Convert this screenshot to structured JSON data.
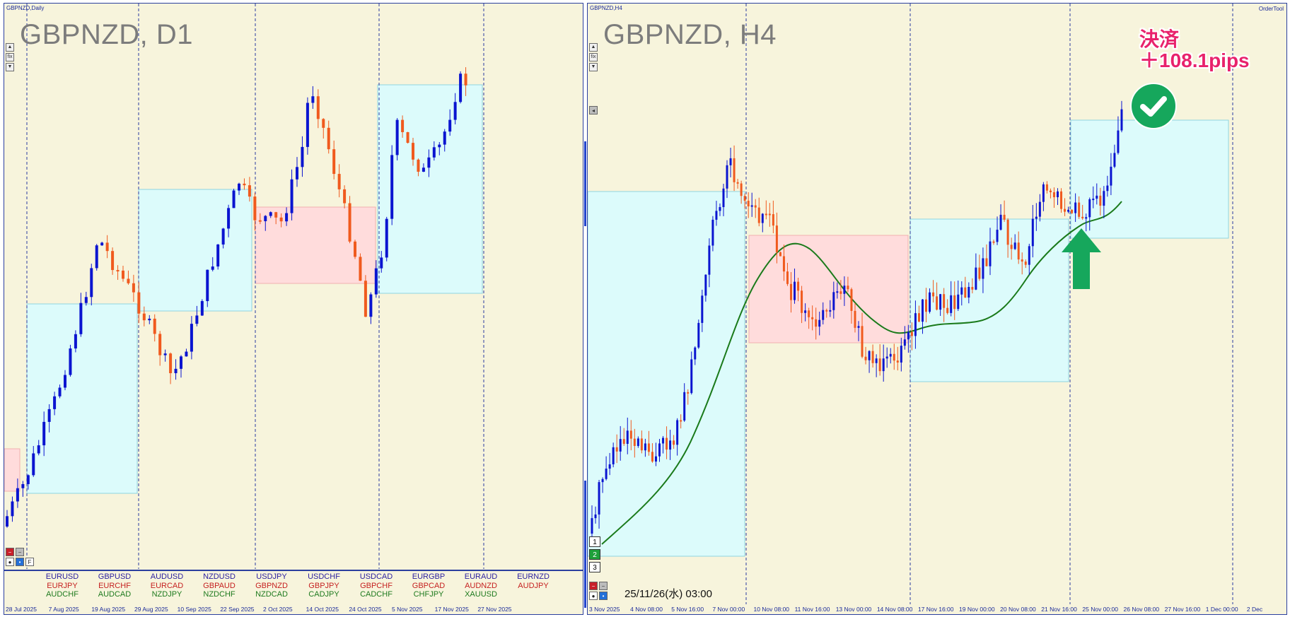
{
  "left": {
    "window_title": "GBPNZD,Daily",
    "title": "GBPNZD, D1",
    "date_labels": [
      "28 Jul 2025",
      "7 Aug 2025",
      "19 Aug 2025",
      "29 Aug 2025",
      "10 Sep 2025",
      "22 Sep 2025",
      "2 Oct 2025",
      "14 Oct 2025",
      "24 Oct 2025",
      "5 Nov 2025",
      "17 Nov 2025",
      "27 Nov 2025"
    ],
    "pair_groups": [
      [
        "EURUSD",
        "EURJPY",
        "AUDCHF"
      ],
      [
        "GBPUSD",
        "EURCHF",
        "AUDCAD"
      ],
      [
        "AUDUSD",
        "EURCAD",
        "NZDJPY"
      ],
      [
        "NZDUSD",
        "GBPAUD",
        "NZDCHF"
      ],
      [
        "USDJPY",
        "GBPNZD",
        "NZDCAD"
      ],
      [
        "USDCHF",
        "GBPJPY",
        "CADJPY"
      ],
      [
        "USDCAD",
        "GBPCHF",
        "CADCHF"
      ],
      [
        "EURGBP",
        "GBPCAD",
        "CHFJPY"
      ],
      [
        "EURAUD",
        "AUDNZD",
        "XAUUSD"
      ],
      [
        "EURNZD",
        "AUDJPY",
        ""
      ]
    ],
    "btn_f": "F"
  },
  "right": {
    "window_title": "GBPNZD,H4",
    "title": "GBPNZD, H4",
    "order_tool": "OrderTool",
    "date_labels": [
      "3 Nov 2025",
      "4 Nov 08:00",
      "5 Nov 16:00",
      "7 Nov 00:00",
      "10 Nov 08:00",
      "11 Nov 16:00",
      "13 Nov 00:00",
      "14 Nov 08:00",
      "17 Nov 16:00",
      "19 Nov 00:00",
      "20 Nov 08:00",
      "21 Nov 16:00",
      "25 Nov 00:00",
      "26 Nov 08:00",
      "27 Nov 16:00",
      "1 Dec 00:00",
      "2 Dec"
    ],
    "timestamp": "25/11/26(水) 03:00",
    "num_boxes": [
      "1",
      "2",
      "3"
    ],
    "annotation_line1": "決済",
    "annotation_line2": "＋108.1pips"
  },
  "icons": {
    "check": "check-circle-icon",
    "arrow": "up-arrow-icon"
  },
  "colors": {
    "background": "#f7f4dc",
    "bull": "#0a14d0",
    "bear": "#f05a1e",
    "blue_zone": "#dcfbfb",
    "pink_zone": "#ffdcdc",
    "ma": "#1a7a1a",
    "annotation": "#e8226c",
    "check": "#16a75c"
  }
}
